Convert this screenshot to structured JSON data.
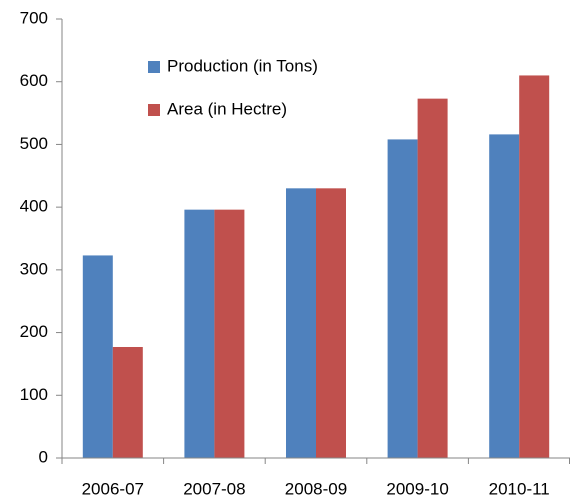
{
  "chart_data": {
    "type": "bar",
    "categories": [
      "2006-07",
      "2007-08",
      "2008-09",
      "2009-10",
      "2010-11"
    ],
    "series": [
      {
        "name": "Production (in Tons)",
        "color": "#4f81bd",
        "values": [
          323,
          396,
          430,
          508,
          516
        ]
      },
      {
        "name": "Area (in Hectre)",
        "color": "#c0504d",
        "values": [
          177,
          396,
          430,
          573,
          610
        ]
      }
    ],
    "ylim": [
      0,
      700
    ],
    "yticks": [
      0,
      100,
      200,
      300,
      400,
      500,
      600,
      700
    ],
    "grid": false,
    "legend": "top-left"
  }
}
